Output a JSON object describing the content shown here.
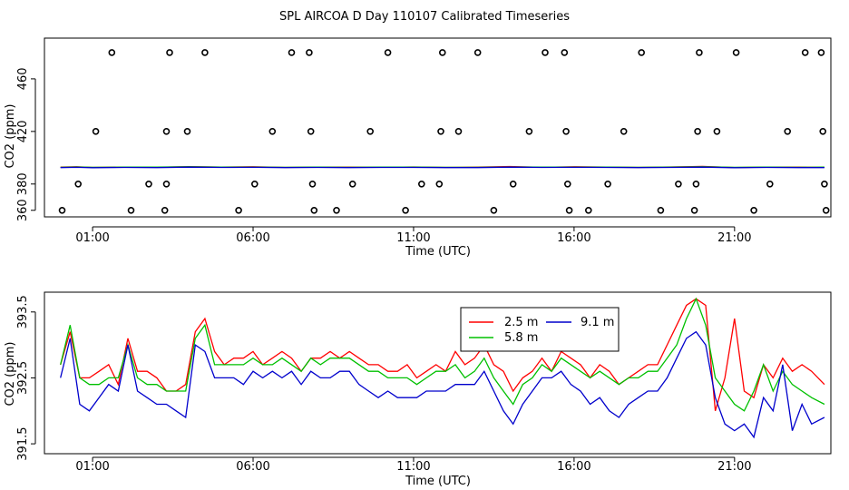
{
  "title": "SPL AIRCOA D  Day 110107  Calibrated Timeseries",
  "chart_data": [
    {
      "type": "scatter",
      "xlabel": "Time (UTC)",
      "ylabel": "CO2 (ppm)",
      "xlim": [
        -0.5,
        24.0
      ],
      "ylim": [
        355,
        491
      ],
      "xticks": [
        1,
        6,
        11,
        16,
        21
      ],
      "xtick_labels": [
        "01:00",
        "06:00",
        "11:00",
        "16:00",
        "21:00"
      ],
      "yticks": [
        380,
        420,
        460
      ],
      "ytick_labels": [
        "380",
        "420",
        "460"
      ],
      "ytick_labels_rotated": [
        "360",
        "380",
        "420",
        "460"
      ],
      "ytick_values_rotated": [
        360,
        380,
        420,
        460
      ],
      "points": [
        {
          "x": 0.05,
          "y": 360
        },
        {
          "x": 0.55,
          "y": 380
        },
        {
          "x": 1.1,
          "y": 420
        },
        {
          "x": 1.6,
          "y": 480
        },
        {
          "x": 2.2,
          "y": 360
        },
        {
          "x": 2.75,
          "y": 380
        },
        {
          "x": 3.25,
          "y": 360
        },
        {
          "x": 3.3,
          "y": 380
        },
        {
          "x": 3.3,
          "y": 420
        },
        {
          "x": 3.4,
          "y": 480
        },
        {
          "x": 3.95,
          "y": 420
        },
        {
          "x": 4.5,
          "y": 480
        },
        {
          "x": 5.55,
          "y": 360
        },
        {
          "x": 6.05,
          "y": 380
        },
        {
          "x": 6.6,
          "y": 420
        },
        {
          "x": 7.2,
          "y": 480
        },
        {
          "x": 7.75,
          "y": 480
        },
        {
          "x": 7.8,
          "y": 420
        },
        {
          "x": 7.85,
          "y": 380
        },
        {
          "x": 7.9,
          "y": 360
        },
        {
          "x": 8.6,
          "y": 360
        },
        {
          "x": 9.1,
          "y": 380
        },
        {
          "x": 9.65,
          "y": 420
        },
        {
          "x": 10.2,
          "y": 480
        },
        {
          "x": 10.75,
          "y": 360
        },
        {
          "x": 11.25,
          "y": 380
        },
        {
          "x": 11.8,
          "y": 380
        },
        {
          "x": 11.85,
          "y": 420
        },
        {
          "x": 11.9,
          "y": 480
        },
        {
          "x": 12.4,
          "y": 420
        },
        {
          "x": 13.0,
          "y": 480
        },
        {
          "x": 13.5,
          "y": 360
        },
        {
          "x": 14.1,
          "y": 380
        },
        {
          "x": 14.6,
          "y": 420
        },
        {
          "x": 15.1,
          "y": 480
        },
        {
          "x": 15.7,
          "y": 480
        },
        {
          "x": 15.75,
          "y": 420
        },
        {
          "x": 15.8,
          "y": 380
        },
        {
          "x": 15.85,
          "y": 360
        },
        {
          "x": 16.45,
          "y": 360
        },
        {
          "x": 17.05,
          "y": 380
        },
        {
          "x": 17.55,
          "y": 420
        },
        {
          "x": 18.1,
          "y": 480
        },
        {
          "x": 18.7,
          "y": 360
        },
        {
          "x": 19.25,
          "y": 380
        },
        {
          "x": 19.75,
          "y": 360
        },
        {
          "x": 19.8,
          "y": 380
        },
        {
          "x": 19.85,
          "y": 420
        },
        {
          "x": 19.9,
          "y": 480
        },
        {
          "x": 20.45,
          "y": 420
        },
        {
          "x": 21.05,
          "y": 480
        },
        {
          "x": 21.6,
          "y": 360
        },
        {
          "x": 22.1,
          "y": 380
        },
        {
          "x": 22.65,
          "y": 420
        },
        {
          "x": 23.2,
          "y": 480
        },
        {
          "x": 23.7,
          "y": 480
        },
        {
          "x": 23.75,
          "y": 420
        },
        {
          "x": 23.8,
          "y": 380
        },
        {
          "x": 23.85,
          "y": 360
        }
      ],
      "series": [
        {
          "name": "2.5 m",
          "color": "#ff0000",
          "x": [
            0.0,
            0.5,
            1,
            2,
            3,
            4,
            5,
            6,
            7,
            8,
            9,
            10,
            11,
            12,
            13,
            14,
            15,
            16,
            17,
            18,
            19,
            20,
            21,
            22,
            23,
            23.8
          ],
          "values": [
            392.8,
            393.1,
            392.6,
            392.9,
            392.7,
            393.2,
            392.8,
            393.1,
            392.6,
            392.9,
            392.8,
            392.7,
            393.0,
            392.6,
            392.8,
            393.3,
            392.7,
            393.1,
            392.8,
            392.6,
            393.0,
            393.4,
            392.5,
            392.9,
            392.8,
            392.7
          ]
        },
        {
          "name": "5.8 m",
          "color": "#00c000",
          "x": [
            0.0,
            0.5,
            1,
            2,
            3,
            4,
            5,
            6,
            7,
            8,
            9,
            10,
            11,
            12,
            13,
            14,
            15,
            16,
            17,
            18,
            19,
            20,
            21,
            22,
            23,
            23.8
          ],
          "values": [
            392.7,
            393.0,
            392.7,
            392.8,
            392.8,
            393.1,
            392.9,
            392.9,
            392.7,
            392.8,
            392.7,
            392.8,
            392.9,
            392.7,
            392.7,
            393.0,
            392.8,
            392.9,
            392.8,
            392.7,
            392.9,
            393.1,
            392.7,
            392.8,
            392.7,
            392.8
          ]
        },
        {
          "name": "9.1 m",
          "color": "#0000cc",
          "x": [
            0.0,
            0.5,
            1,
            2,
            3,
            4,
            5,
            6,
            7,
            8,
            9,
            10,
            11,
            12,
            13,
            14,
            15,
            16,
            17,
            18,
            19,
            20,
            21,
            22,
            23,
            23.8
          ],
          "values": [
            392.5,
            392.7,
            392.4,
            392.6,
            392.5,
            392.8,
            392.6,
            392.7,
            392.5,
            392.6,
            392.5,
            392.6,
            392.6,
            392.5,
            392.5,
            392.8,
            392.6,
            392.7,
            392.6,
            392.5,
            392.6,
            392.8,
            392.4,
            392.6,
            392.5,
            392.5
          ]
        }
      ]
    },
    {
      "type": "line",
      "xlabel": "Time (UTC)",
      "ylabel": "CO2 (ppm)",
      "xlim": [
        -0.5,
        24.0
      ],
      "ylim": [
        391.35,
        393.8
      ],
      "xticks": [
        1,
        6,
        11,
        16,
        21
      ],
      "xtick_labels": [
        "01:00",
        "06:00",
        "11:00",
        "16:00",
        "21:00"
      ],
      "yticks": [
        391.5,
        392.5,
        393.5
      ],
      "ytick_labels": [
        "391.5",
        "392.5",
        "393.5"
      ],
      "legend": [
        {
          "label": "2.5 m",
          "color": "#ff0000"
        },
        {
          "label": "9.1 m",
          "color": "#0000cc"
        },
        {
          "label": "5.8 m",
          "color": "#00c000"
        }
      ],
      "x": [
        0.0,
        0.3,
        0.6,
        0.9,
        1.2,
        1.5,
        1.8,
        2.1,
        2.4,
        2.7,
        3.0,
        3.3,
        3.6,
        3.9,
        4.2,
        4.5,
        4.8,
        5.1,
        5.4,
        5.7,
        6.0,
        6.3,
        6.6,
        6.9,
        7.2,
        7.5,
        7.8,
        8.1,
        8.4,
        8.7,
        9.0,
        9.3,
        9.6,
        9.9,
        10.2,
        10.5,
        10.8,
        11.1,
        11.4,
        11.7,
        12.0,
        12.3,
        12.6,
        12.9,
        13.2,
        13.5,
        13.8,
        14.1,
        14.4,
        14.7,
        15.0,
        15.3,
        15.6,
        15.9,
        16.2,
        16.5,
        16.8,
        17.1,
        17.4,
        17.7,
        18.0,
        18.3,
        18.6,
        18.9,
        19.2,
        19.5,
        19.8,
        20.1,
        20.4,
        20.7,
        21.0,
        21.3,
        21.6,
        21.9,
        22.2,
        22.5,
        22.8,
        23.1,
        23.4,
        23.8
      ],
      "series": [
        {
          "name": "2.5 m",
          "color": "#ff0000",
          "values": [
            392.7,
            393.2,
            392.5,
            392.5,
            392.6,
            392.7,
            392.4,
            393.1,
            392.6,
            392.6,
            392.5,
            392.3,
            392.3,
            392.4,
            393.2,
            393.4,
            392.9,
            392.7,
            392.8,
            392.8,
            392.9,
            392.7,
            392.8,
            392.9,
            392.8,
            392.6,
            392.8,
            392.8,
            392.9,
            392.8,
            392.9,
            392.8,
            392.7,
            392.7,
            392.6,
            392.6,
            392.7,
            392.5,
            392.6,
            392.7,
            392.6,
            392.9,
            392.7,
            392.8,
            393.0,
            392.7,
            392.6,
            392.3,
            392.5,
            392.6,
            392.8,
            392.6,
            392.9,
            392.8,
            392.7,
            392.5,
            392.7,
            392.6,
            392.4,
            392.5,
            392.6,
            392.7,
            392.7,
            393.0,
            393.3,
            393.6,
            393.7,
            393.6,
            392.0,
            392.5,
            393.4,
            392.3,
            392.2,
            392.7,
            392.5,
            392.8,
            392.6,
            392.7,
            392.6,
            392.4
          ]
        },
        {
          "name": "5.8 m",
          "color": "#00c000",
          "values": [
            392.7,
            393.3,
            392.5,
            392.4,
            392.4,
            392.5,
            392.5,
            393.0,
            392.5,
            392.4,
            392.4,
            392.3,
            392.3,
            392.3,
            393.1,
            393.3,
            392.7,
            392.7,
            392.7,
            392.7,
            392.8,
            392.7,
            392.7,
            392.8,
            392.7,
            392.6,
            392.8,
            392.7,
            392.8,
            392.8,
            392.8,
            392.7,
            392.6,
            392.6,
            392.5,
            392.5,
            392.5,
            392.4,
            392.5,
            392.6,
            392.6,
            392.7,
            392.5,
            392.6,
            392.8,
            392.5,
            392.3,
            392.1,
            392.4,
            392.5,
            392.7,
            392.6,
            392.8,
            392.7,
            392.6,
            392.5,
            392.6,
            392.5,
            392.4,
            392.5,
            392.5,
            392.6,
            392.6,
            392.8,
            393.0,
            393.4,
            393.7,
            393.3,
            392.5,
            392.3,
            392.1,
            392.0,
            392.3,
            392.7,
            392.3,
            392.6,
            392.4,
            392.3,
            392.2,
            392.1
          ]
        },
        {
          "name": "9.1 m",
          "color": "#0000cc",
          "values": [
            392.5,
            393.1,
            392.1,
            392.0,
            392.2,
            392.4,
            392.3,
            393.0,
            392.3,
            392.2,
            392.1,
            392.1,
            392.0,
            391.9,
            393.0,
            392.9,
            392.5,
            392.5,
            392.5,
            392.4,
            392.6,
            392.5,
            392.6,
            392.5,
            392.6,
            392.4,
            392.6,
            392.5,
            392.5,
            392.6,
            392.6,
            392.4,
            392.3,
            392.2,
            392.3,
            392.2,
            392.2,
            392.2,
            392.3,
            392.3,
            392.3,
            392.4,
            392.4,
            392.4,
            392.6,
            392.3,
            392.0,
            391.8,
            392.1,
            392.3,
            392.5,
            392.5,
            392.6,
            392.4,
            392.3,
            392.1,
            392.2,
            392.0,
            391.9,
            392.1,
            392.2,
            392.3,
            392.3,
            392.5,
            392.8,
            393.1,
            393.2,
            393.0,
            392.2,
            391.8,
            391.7,
            391.8,
            391.6,
            392.2,
            392.0,
            392.7,
            391.7,
            392.1,
            391.8,
            391.9
          ]
        }
      ]
    }
  ]
}
